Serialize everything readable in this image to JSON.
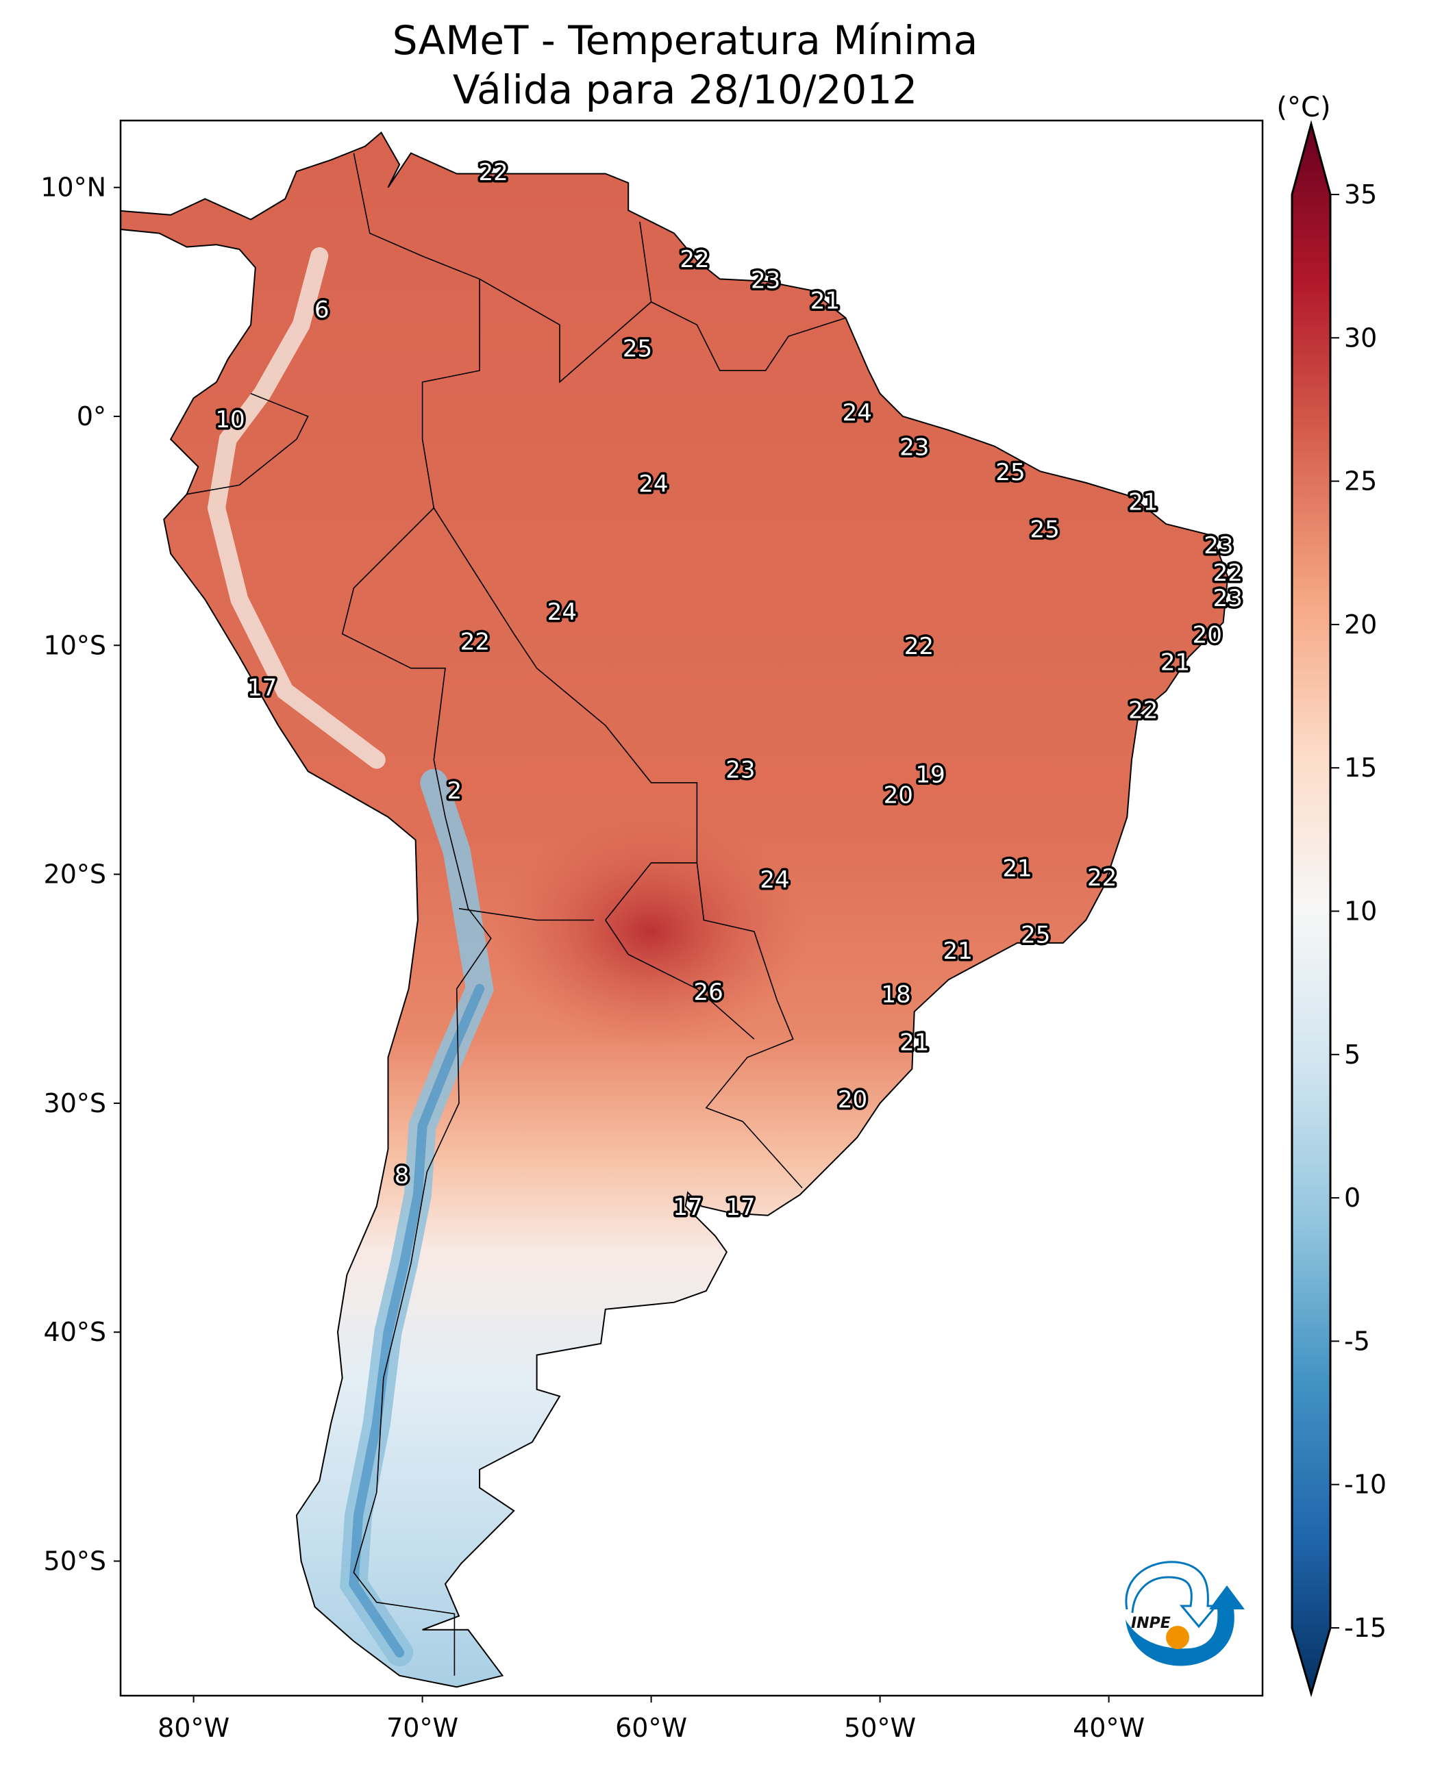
{
  "title": {
    "line1": "SAMeT - Temperatura Mínima",
    "line2": "Válida para 28/10/2012"
  },
  "colorbar": {
    "unit_label": "(°C)",
    "ticks": [
      "35",
      "30",
      "25",
      "20",
      "15",
      "10",
      "5",
      "0",
      "-5",
      "-10",
      "-15"
    ],
    "tick_values": [
      35,
      30,
      25,
      20,
      15,
      10,
      5,
      0,
      -5,
      -10,
      -15
    ],
    "range": [
      -15,
      35
    ],
    "extend": "both",
    "colormap": "RdBu_r",
    "colors": {
      "35": "#67001f",
      "30": "#b2182b",
      "25": "#d6604d",
      "20": "#f4a582",
      "15": "#fddbc7",
      "10": "#f7f7f7",
      "5": "#d1e5f0",
      "0": "#92c5de",
      "-5": "#4393c3",
      "-10": "#2166ac",
      "-15": "#053061"
    }
  },
  "chart_data": {
    "type": "map",
    "title": "SAMeT - Temperatura Mínima Válida para 28/10/2012",
    "region": "South America",
    "lon_range": [
      -83.2,
      -33.3
    ],
    "lat_range": [
      -56,
      13
    ],
    "lat_ticks": [
      {
        "value": 10,
        "label": "10°N"
      },
      {
        "value": 0,
        "label": "0°"
      },
      {
        "value": -10,
        "label": "10°S"
      },
      {
        "value": -20,
        "label": "20°S"
      },
      {
        "value": -30,
        "label": "30°S"
      },
      {
        "value": -40,
        "label": "40°S"
      },
      {
        "value": -50,
        "label": "50°S"
      }
    ],
    "lon_ticks": [
      {
        "value": -80,
        "label": "80°W"
      },
      {
        "value": -70,
        "label": "70°W"
      },
      {
        "value": -60,
        "label": "60°W"
      },
      {
        "value": -50,
        "label": "50°W"
      },
      {
        "value": -40,
        "label": "40°W"
      }
    ],
    "station_labels": [
      {
        "text": "22",
        "lon": -66.9,
        "lat": 10.6
      },
      {
        "text": "22",
        "lon": -58.1,
        "lat": 6.8
      },
      {
        "text": "23",
        "lon": -55.0,
        "lat": 5.9
      },
      {
        "text": "21",
        "lon": -52.4,
        "lat": 5.0
      },
      {
        "text": "6",
        "lon": -74.4,
        "lat": 4.6
      },
      {
        "text": "25",
        "lon": -60.6,
        "lat": 2.9
      },
      {
        "text": "10",
        "lon": -78.4,
        "lat": -0.2
      },
      {
        "text": "24",
        "lon": -51.0,
        "lat": 0.1
      },
      {
        "text": "23",
        "lon": -48.5,
        "lat": -1.4
      },
      {
        "text": "24",
        "lon": -59.9,
        "lat": -3.0
      },
      {
        "text": "25",
        "lon": -44.3,
        "lat": -2.5
      },
      {
        "text": "21",
        "lon": -38.5,
        "lat": -3.8
      },
      {
        "text": "25",
        "lon": -42.8,
        "lat": -5.0
      },
      {
        "text": "23",
        "lon": -35.2,
        "lat": -5.7
      },
      {
        "text": "22",
        "lon": -34.8,
        "lat": -6.9
      },
      {
        "text": "23",
        "lon": -34.8,
        "lat": -8.0
      },
      {
        "text": "24",
        "lon": -63.9,
        "lat": -8.6
      },
      {
        "text": "22",
        "lon": -67.7,
        "lat": -9.9
      },
      {
        "text": "20",
        "lon": -35.7,
        "lat": -9.6
      },
      {
        "text": "22",
        "lon": -48.3,
        "lat": -10.1
      },
      {
        "text": "21",
        "lon": -37.1,
        "lat": -10.8
      },
      {
        "text": "17",
        "lon": -77.0,
        "lat": -11.9
      },
      {
        "text": "22",
        "lon": -38.5,
        "lat": -12.9
      },
      {
        "text": "19",
        "lon": -47.8,
        "lat": -15.7
      },
      {
        "text": "23",
        "lon": -56.1,
        "lat": -15.5
      },
      {
        "text": "2",
        "lon": -68.6,
        "lat": -16.4
      },
      {
        "text": "20",
        "lon": -49.2,
        "lat": -16.6
      },
      {
        "text": "21",
        "lon": -44.0,
        "lat": -19.8
      },
      {
        "text": "22",
        "lon": -40.3,
        "lat": -20.2
      },
      {
        "text": "24",
        "lon": -54.6,
        "lat": -20.3
      },
      {
        "text": "25",
        "lon": -43.2,
        "lat": -22.7
      },
      {
        "text": "21",
        "lon": -46.6,
        "lat": -23.4
      },
      {
        "text": "26",
        "lon": -57.5,
        "lat": -25.2
      },
      {
        "text": "18",
        "lon": -49.3,
        "lat": -25.3
      },
      {
        "text": "21",
        "lon": -48.5,
        "lat": -27.4
      },
      {
        "text": "20",
        "lon": -51.2,
        "lat": -29.9
      },
      {
        "text": "8",
        "lon": -70.9,
        "lat": -33.2
      },
      {
        "text": "17",
        "lon": -58.4,
        "lat": -34.6
      },
      {
        "text": "17",
        "lon": -56.1,
        "lat": -34.6
      }
    ]
  },
  "logo": {
    "text": "INPE",
    "colors": {
      "blue": "#0277bd",
      "orange": "#f39200"
    }
  }
}
